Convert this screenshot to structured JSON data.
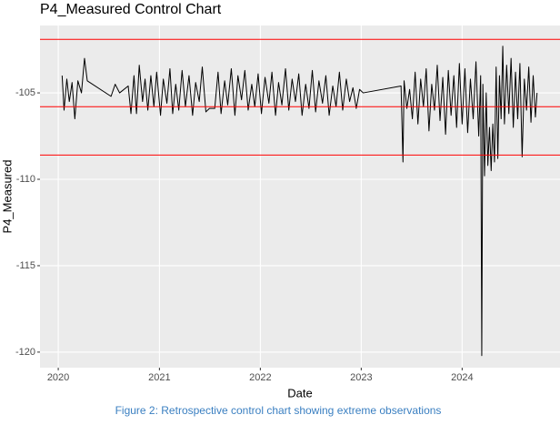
{
  "chart_data": {
    "type": "line",
    "title": "P4_Measured Control Chart",
    "xlabel": "Date",
    "ylabel": "P4_Measured",
    "caption": "Figure 2: Retrospective control chart showing extreme observations",
    "color": "#000000",
    "grid": true,
    "xlim": [
      "2019-10-27",
      "2024-12-20"
    ],
    "ylim": [
      -120.9,
      -101.1
    ],
    "xticks": [
      {
        "value": "2020-01-01",
        "label": "2020"
      },
      {
        "value": "2021-01-01",
        "label": "2021"
      },
      {
        "value": "2022-01-01",
        "label": "2022"
      },
      {
        "value": "2023-01-01",
        "label": "2023"
      },
      {
        "value": "2024-01-01",
        "label": "2024"
      }
    ],
    "yticks": [
      -105,
      -110,
      -115,
      -120
    ],
    "reference_lines": [
      {
        "value": -101.9,
        "color": "#ff0000"
      },
      {
        "value": -105.8,
        "color": "#ff0000"
      },
      {
        "value": -108.6,
        "color": "#ff0000"
      }
    ],
    "x": [
      "2020-01-15",
      "2020-01-22",
      "2020-02-01",
      "2020-02-10",
      "2020-02-20",
      "2020-03-01",
      "2020-03-12",
      "2020-03-25",
      "2020-04-05",
      "2020-04-15",
      "2020-07-10",
      "2020-07-25",
      "2020-08-10",
      "2020-09-10",
      "2020-09-20",
      "2020-10-01",
      "2020-10-10",
      "2020-10-20",
      "2020-11-01",
      "2020-11-10",
      "2020-11-20",
      "2020-12-01",
      "2020-12-12",
      "2020-12-22",
      "2021-01-05",
      "2021-01-15",
      "2021-01-28",
      "2021-02-08",
      "2021-02-18",
      "2021-03-01",
      "2021-03-12",
      "2021-03-24",
      "2021-04-05",
      "2021-04-18",
      "2021-05-01",
      "2021-05-12",
      "2021-05-25",
      "2021-06-05",
      "2021-06-18",
      "2021-07-01",
      "2021-07-20",
      "2021-08-01",
      "2021-08-12",
      "2021-08-25",
      "2021-09-05",
      "2021-09-18",
      "2021-10-01",
      "2021-10-12",
      "2021-10-25",
      "2021-11-06",
      "2021-11-18",
      "2021-12-01",
      "2021-12-12",
      "2021-12-24",
      "2022-01-05",
      "2022-01-18",
      "2022-02-01",
      "2022-02-12",
      "2022-02-25",
      "2022-03-08",
      "2022-03-20",
      "2022-04-02",
      "2022-04-14",
      "2022-04-26",
      "2022-05-08",
      "2022-05-20",
      "2022-06-01",
      "2022-06-14",
      "2022-06-26",
      "2022-07-08",
      "2022-07-20",
      "2022-08-01",
      "2022-08-14",
      "2022-08-26",
      "2022-09-07",
      "2022-09-20",
      "2022-10-02",
      "2022-10-14",
      "2022-10-26",
      "2022-11-08",
      "2022-11-20",
      "2022-12-02",
      "2022-12-14",
      "2022-12-26",
      "2023-01-08",
      "2023-05-25",
      "2023-06-01",
      "2023-06-05",
      "2023-06-15",
      "2023-06-25",
      "2023-07-05",
      "2023-07-15",
      "2023-07-25",
      "2023-08-04",
      "2023-08-14",
      "2023-08-24",
      "2023-09-03",
      "2023-09-13",
      "2023-09-23",
      "2023-10-03",
      "2023-10-13",
      "2023-10-23",
      "2023-11-02",
      "2023-11-12",
      "2023-11-22",
      "2023-12-02",
      "2023-12-12",
      "2023-12-22",
      "2024-01-01",
      "2024-01-11",
      "2024-01-21",
      "2024-01-31",
      "2024-02-10",
      "2024-02-20",
      "2024-03-01",
      "2024-03-08",
      "2024-03-12",
      "2024-03-16",
      "2024-03-22",
      "2024-03-28",
      "2024-04-03",
      "2024-04-09",
      "2024-04-15",
      "2024-04-21",
      "2024-04-27",
      "2024-05-03",
      "2024-05-09",
      "2024-05-15",
      "2024-05-21",
      "2024-05-27",
      "2024-06-02",
      "2024-06-10",
      "2024-06-18",
      "2024-06-26",
      "2024-07-04",
      "2024-07-12",
      "2024-07-20",
      "2024-07-28",
      "2024-08-05",
      "2024-08-13",
      "2024-08-21",
      "2024-08-29",
      "2024-09-06",
      "2024-09-14",
      "2024-09-22",
      "2024-09-28"
    ],
    "values": [
      -104.0,
      -106.0,
      -104.2,
      -105.5,
      -104.4,
      -106.5,
      -104.3,
      -105.0,
      -103.0,
      -104.3,
      -105.2,
      -104.5,
      -105.0,
      -104.6,
      -106.2,
      -104.0,
      -106.2,
      -103.4,
      -105.5,
      -104.2,
      -106.0,
      -104.0,
      -105.8,
      -103.8,
      -106.3,
      -104.2,
      -105.6,
      -103.6,
      -106.2,
      -104.5,
      -106.0,
      -103.7,
      -105.8,
      -104.0,
      -106.3,
      -104.4,
      -105.5,
      -103.5,
      -106.1,
      -105.9,
      -105.9,
      -103.8,
      -106.2,
      -104.3,
      -105.7,
      -103.6,
      -106.3,
      -104.0,
      -105.4,
      -103.7,
      -106.0,
      -104.5,
      -105.8,
      -103.9,
      -106.2,
      -104.1,
      -105.6,
      -103.8,
      -106.3,
      -104.4,
      -105.7,
      -103.6,
      -106.0,
      -104.2,
      -105.5,
      -103.9,
      -106.3,
      -104.5,
      -105.9,
      -103.7,
      -106.1,
      -104.3,
      -105.6,
      -104.0,
      -106.3,
      -104.6,
      -105.8,
      -103.8,
      -106.0,
      -104.2,
      -105.5,
      -104.7,
      -105.9,
      -104.8,
      -105.0,
      -104.6,
      -109.0,
      -104.3,
      -105.9,
      -104.8,
      -106.5,
      -103.8,
      -106.8,
      -104.2,
      -105.8,
      -103.6,
      -107.2,
      -104.5,
      -106.0,
      -103.4,
      -106.6,
      -104.1,
      -107.4,
      -103.7,
      -106.3,
      -104.0,
      -107.0,
      -103.3,
      -106.8,
      -103.6,
      -107.3,
      -104.2,
      -106.5,
      -103.2,
      -107.5,
      -104.0,
      -120.2,
      -104.5,
      -109.8,
      -105.0,
      -109.2,
      -107.0,
      -109.5,
      -106.8,
      -109.0,
      -103.5,
      -108.8,
      -104.0,
      -106.5,
      -102.3,
      -106.8,
      -103.4,
      -106.2,
      -103.0,
      -107.0,
      -103.8,
      -106.5,
      -103.3,
      -108.7,
      -104.2,
      -106.0,
      -103.5,
      -106.7,
      -104.0,
      -106.4,
      -105.0
    ]
  }
}
